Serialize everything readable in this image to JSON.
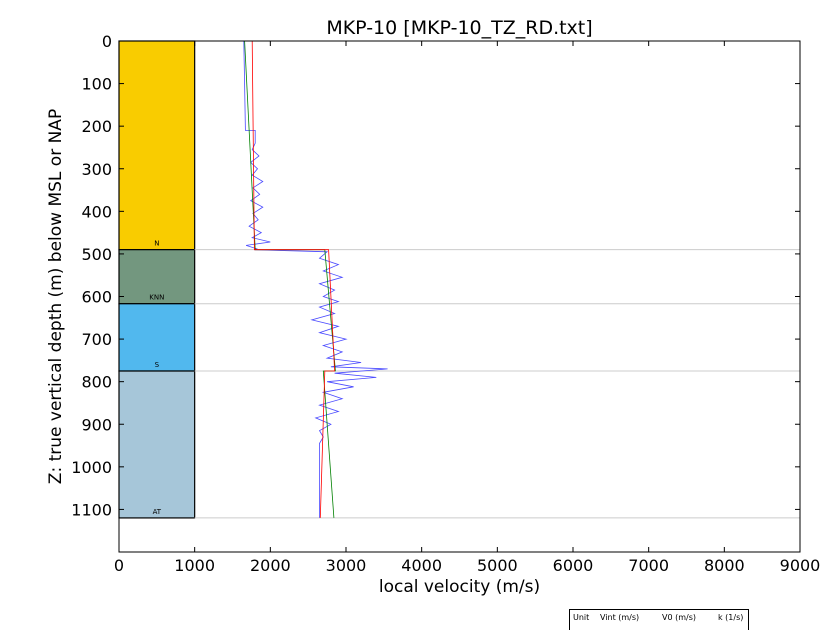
{
  "chart_data": {
    "type": "line",
    "title": "MKP-10 [MKP-10_TZ_RD.txt]",
    "xlabel": "local velocity (m/s)",
    "ylabel": "Z: true vertical depth (m) below MSL or NAP",
    "xlim": [
      0,
      9000
    ],
    "ylim": [
      1200,
      0
    ],
    "xticks": [
      0,
      1000,
      2000,
      3000,
      4000,
      5000,
      6000,
      7000,
      8000,
      9000
    ],
    "yticks": [
      0,
      100,
      200,
      300,
      400,
      500,
      600,
      700,
      800,
      900,
      1000,
      1100
    ],
    "grid": false,
    "layers": [
      {
        "label": "N",
        "top": 0,
        "bottom": 490,
        "color": "#F9CC00"
      },
      {
        "label": "KNN",
        "top": 490,
        "bottom": 617,
        "color": "#73977F"
      },
      {
        "label": "S",
        "top": 617,
        "bottom": 775,
        "color": "#51B8EE"
      },
      {
        "label": "AT",
        "top": 775,
        "bottom": 1120,
        "color": "#A6C6D9"
      }
    ],
    "layer_column_x": [
      0,
      1000
    ],
    "boundary_depths": [
      490,
      617,
      775,
      1120
    ],
    "series": [
      {
        "color": "#4A4AFF",
        "points": [
          [
            1650,
            0
          ],
          [
            1660,
            100
          ],
          [
            1670,
            210
          ],
          [
            1800,
            210
          ],
          [
            1800,
            240
          ],
          [
            1760,
            255
          ],
          [
            1850,
            270
          ],
          [
            1740,
            285
          ],
          [
            1830,
            300
          ],
          [
            1760,
            315
          ],
          [
            1900,
            330
          ],
          [
            1770,
            345
          ],
          [
            1860,
            360
          ],
          [
            1740,
            375
          ],
          [
            1900,
            390
          ],
          [
            1770,
            405
          ],
          [
            1840,
            420
          ],
          [
            1720,
            435
          ],
          [
            1880,
            450
          ],
          [
            1760,
            462
          ],
          [
            2000,
            472
          ],
          [
            1680,
            480
          ],
          [
            1820,
            488
          ],
          [
            1790,
            490
          ],
          [
            2750,
            495
          ],
          [
            2650,
            510
          ],
          [
            2900,
            525
          ],
          [
            2700,
            540
          ],
          [
            2950,
            555
          ],
          [
            2650,
            570
          ],
          [
            2850,
            585
          ],
          [
            2700,
            600
          ],
          [
            2900,
            612
          ],
          [
            2650,
            625
          ],
          [
            2850,
            640
          ],
          [
            2550,
            655
          ],
          [
            2900,
            670
          ],
          [
            2650,
            685
          ],
          [
            3000,
            700
          ],
          [
            2700,
            715
          ],
          [
            2950,
            730
          ],
          [
            2750,
            745
          ],
          [
            3200,
            755
          ],
          [
            2800,
            765
          ],
          [
            3550,
            770
          ],
          [
            2850,
            780
          ],
          [
            3400,
            790
          ],
          [
            2750,
            800
          ],
          [
            3100,
            812
          ],
          [
            2700,
            825
          ],
          [
            2950,
            840
          ],
          [
            2650,
            855
          ],
          [
            2900,
            870
          ],
          [
            2600,
            885
          ],
          [
            2800,
            900
          ],
          [
            2650,
            915
          ],
          [
            2700,
            930
          ],
          [
            2650,
            945
          ],
          [
            2650,
            1120
          ]
        ]
      },
      {
        "color": "#008000",
        "points": [
          [
            1660,
            0
          ],
          [
            1800,
            490
          ],
          [
            2720,
            490
          ],
          [
            2860,
            775
          ],
          [
            2700,
            775
          ],
          [
            2840,
            1120
          ]
        ]
      },
      {
        "color": "#FF0000",
        "points": [
          [
            1760,
            0
          ],
          [
            1790,
            490
          ],
          [
            2770,
            490
          ],
          [
            2850,
            775
          ],
          [
            2720,
            775
          ],
          [
            2660,
            1120
          ]
        ]
      }
    ]
  },
  "unit_table": {
    "col1": "Unit",
    "col2": "Vint (m/s)",
    "col3": "V0 (m/s)",
    "col4": "k (1/s)"
  }
}
